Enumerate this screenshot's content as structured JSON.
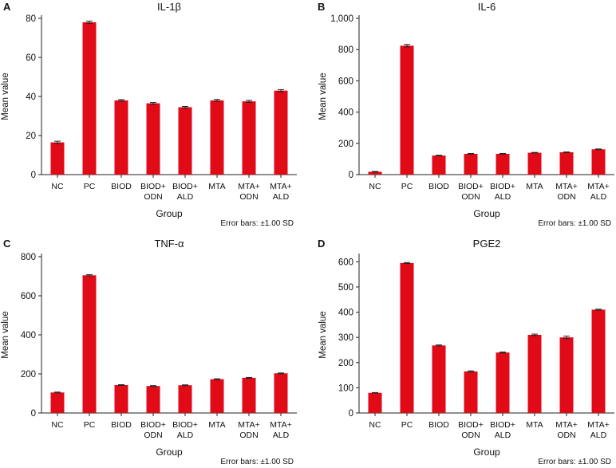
{
  "chart_data": [
    {
      "panel": "A",
      "type": "bar",
      "title": "IL-1β",
      "xlabel": "Group",
      "ylabel": "Mean value",
      "note": "Error bars: ±1.00 SD",
      "categories": [
        [
          "NC"
        ],
        [
          "PC"
        ],
        [
          "BIOD"
        ],
        [
          "BIOD+",
          "ODN"
        ],
        [
          "BIOD+",
          "ALD"
        ],
        [
          "MTA"
        ],
        [
          "MTA+",
          "ODN"
        ],
        [
          "MTA+",
          "ALD"
        ]
      ],
      "values": [
        16.5,
        78,
        38,
        36.5,
        34.5,
        38,
        37.5,
        43
      ],
      "errors": [
        0.6,
        0.6,
        0.4,
        0.4,
        0.4,
        0.5,
        0.5,
        0.5
      ],
      "ylim": [
        0,
        80
      ],
      "yticks": [
        0,
        20,
        40,
        60,
        80
      ],
      "ytick_labels": [
        "0",
        "20",
        "40",
        "60",
        "80"
      ],
      "bar_color": "#e00b17"
    },
    {
      "panel": "B",
      "type": "bar",
      "title": "IL-6",
      "xlabel": "Group",
      "ylabel": "Mean value",
      "note": "Error bars: ±1.00 SD",
      "categories": [
        [
          "NC"
        ],
        [
          "PC"
        ],
        [
          "BIOD"
        ],
        [
          "BIOD+",
          "ODN"
        ],
        [
          "BIOD+",
          "ALD"
        ],
        [
          "MTA"
        ],
        [
          "MTA+",
          "ODN"
        ],
        [
          "MTA+",
          "ALD"
        ]
      ],
      "values": [
        18,
        825,
        122,
        133,
        133,
        140,
        143,
        162
      ],
      "errors": [
        2,
        8,
        2,
        2,
        2,
        2,
        2,
        2
      ],
      "ylim": [
        0,
        1000
      ],
      "yticks": [
        0,
        200,
        400,
        600,
        800,
        1000
      ],
      "ytick_labels": [
        "0",
        "200",
        "400",
        "600",
        "800",
        "1,000"
      ],
      "bar_color": "#e00b17"
    },
    {
      "panel": "C",
      "type": "bar",
      "title": "TNF-α",
      "xlabel": "Group",
      "ylabel": "Mean value",
      "note": "Error bars: ±1.00 SD",
      "categories": [
        [
          "NC"
        ],
        [
          "PC"
        ],
        [
          "BIOD"
        ],
        [
          "BIOD+",
          "ODN"
        ],
        [
          "BIOD+",
          "ALD"
        ],
        [
          "MTA"
        ],
        [
          "MTA+",
          "ODN"
        ],
        [
          "MTA+",
          "ALD"
        ]
      ],
      "values": [
        105,
        705,
        143,
        138,
        142,
        173,
        180,
        203
      ],
      "errors": [
        2,
        3,
        2,
        2,
        2,
        2,
        2,
        2
      ],
      "ylim": [
        0,
        800
      ],
      "yticks": [
        0,
        200,
        400,
        600,
        800
      ],
      "ytick_labels": [
        "0",
        "200",
        "400",
        "600",
        "800"
      ],
      "bar_color": "#e00b17"
    },
    {
      "panel": "D",
      "type": "bar",
      "title": "PGE2",
      "xlabel": "Group",
      "ylabel": "Mean value",
      "note": "Error bars: ±1.00 SD",
      "categories": [
        [
          "NC"
        ],
        [
          "PC"
        ],
        [
          "BIOD"
        ],
        [
          "BIOD+",
          "ODN"
        ],
        [
          "BIOD+",
          "ALD"
        ],
        [
          "MTA"
        ],
        [
          "MTA+",
          "ODN"
        ],
        [
          "MTA+",
          "ALD"
        ]
      ],
      "values": [
        80,
        595,
        268,
        165,
        240,
        310,
        300,
        410
      ],
      "errors": [
        1,
        2,
        2,
        2,
        2,
        3,
        5,
        2
      ],
      "ylim": [
        0,
        620
      ],
      "yticks": [
        0,
        100,
        200,
        300,
        400,
        500,
        600
      ],
      "ytick_labels": [
        "0",
        "100",
        "200",
        "300",
        "400",
        "500",
        "600"
      ],
      "bar_color": "#e00b17"
    }
  ]
}
